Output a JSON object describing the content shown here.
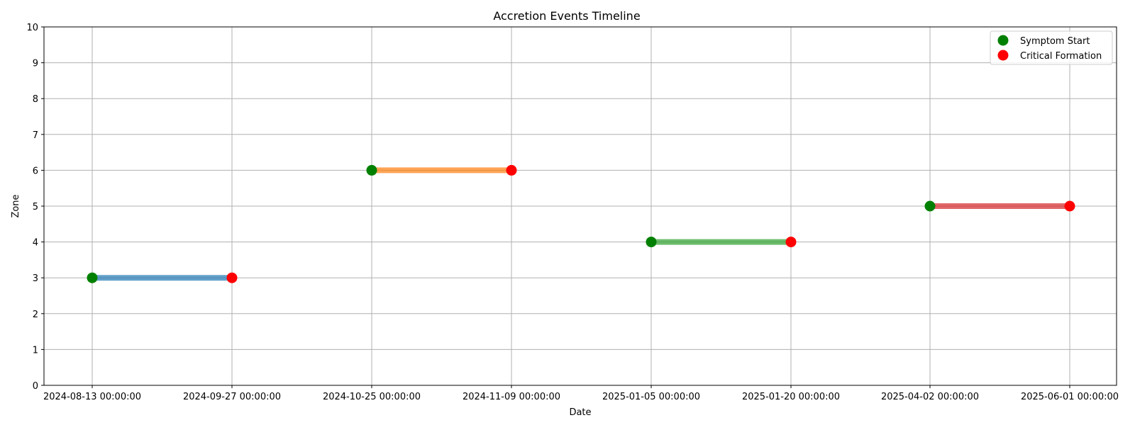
{
  "chart_data": {
    "type": "scatter",
    "title": "Accretion Events Timeline",
    "xlabel": "Date",
    "ylabel": "Zone",
    "ylim": [
      0,
      10
    ],
    "yticks": [
      0,
      1,
      2,
      3,
      4,
      5,
      6,
      7,
      8,
      9,
      10
    ],
    "x_tick_labels": [
      "2024-08-13 00:00:00",
      "2024-09-27 00:00:00",
      "2024-10-25 00:00:00",
      "2024-11-09 00:00:00",
      "2025-01-05 00:00:00",
      "2025-01-20 00:00:00",
      "2025-04-02 00:00:00",
      "2025-06-01 00:00:00"
    ],
    "grid": true,
    "legend_position": "top-right",
    "events": [
      {
        "start": "2024-08-13 00:00:00",
        "end": "2024-09-27 00:00:00",
        "zone": 3,
        "color": "#1f77b4"
      },
      {
        "start": "2024-10-25 00:00:00",
        "end": "2024-11-09 00:00:00",
        "zone": 6,
        "color": "#ff7f0e"
      },
      {
        "start": "2025-01-05 00:00:00",
        "end": "2025-01-20 00:00:00",
        "zone": 4,
        "color": "#2ca02c"
      },
      {
        "start": "2025-04-02 00:00:00",
        "end": "2025-06-01 00:00:00",
        "zone": 5,
        "color": "#d62728"
      }
    ],
    "series": [
      {
        "name": "Symptom Start",
        "color": "#008000"
      },
      {
        "name": "Critical Formation",
        "color": "#ff0000"
      }
    ]
  }
}
